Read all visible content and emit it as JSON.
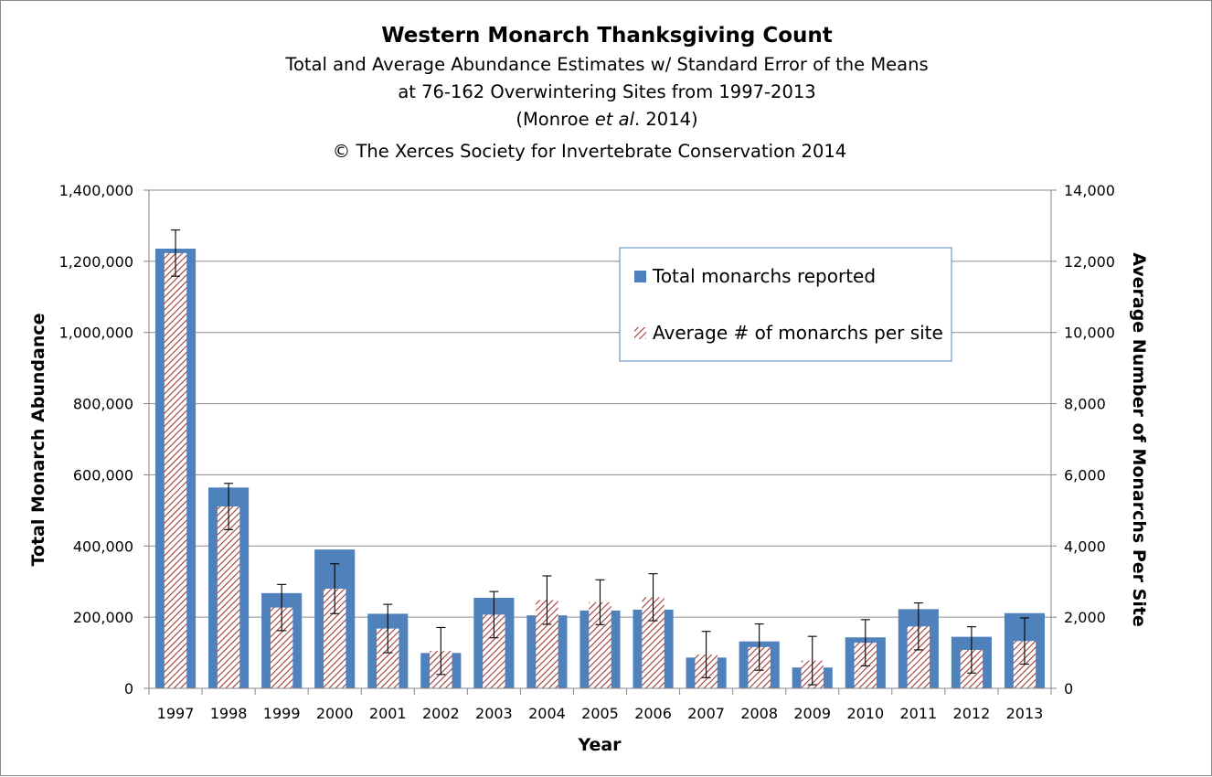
{
  "chart_data": {
    "type": "bar",
    "title": "Western Monarch Thanksgiving Count",
    "subtitle_lines": [
      "Total and Average Abundance Estimates w/ Standard Error of the Means",
      "at 76-162 Overwintering Sites from 1997-2013"
    ],
    "citation": {
      "before": "(Monroe ",
      "italic": "et al",
      "after": ". 2014)"
    },
    "copyright": "© The Xerces Society for Invertebrate Conservation 2014",
    "xlabel": "Year",
    "ylabel": "Total Monarch Abundance",
    "y2label": "Average Number of Monarchs Per Site",
    "ylim": [
      0,
      1400000
    ],
    "y2lim": [
      0,
      14000
    ],
    "yticks": [
      "0",
      "200,000",
      "400,000",
      "600,000",
      "800,000",
      "1,000,000",
      "1,200,000",
      "1,400,000"
    ],
    "y2ticks": [
      "0",
      "2,000",
      "4,000",
      "6,000",
      "8,000",
      "10,000",
      "12,000",
      "14,000"
    ],
    "grid": true,
    "legend_position": "upper-right",
    "categories": [
      "1997",
      "1998",
      "1999",
      "2000",
      "2001",
      "2002",
      "2003",
      "2004",
      "2005",
      "2006",
      "2007",
      "2008",
      "2009",
      "2010",
      "2011",
      "2012",
      "2013"
    ],
    "series": [
      {
        "name": "Total monarchs reported",
        "axis": "left",
        "color": "#4f81bd",
        "values": [
          1235490,
          564349,
          267574,
          390057,
          209570,
          99353,
          254378,
          205085,
          218679,
          221058,
          86437,
          131889,
          58468,
          143204,
          222525,
          144812,
          211275
        ]
      },
      {
        "name": "Average # of monarchs per site",
        "axis": "right",
        "color": "#c0504d",
        "pattern": "hatch",
        "values": [
          12230,
          5110,
          2270,
          2800,
          1680,
          1050,
          2070,
          2480,
          2420,
          2560,
          950,
          1160,
          780,
          1280,
          1740,
          1080,
          1330
        ],
        "error": [
          650,
          650,
          650,
          700,
          680,
          660,
          650,
          680,
          630,
          660,
          650,
          650,
          680,
          650,
          660,
          650,
          650
        ]
      }
    ]
  }
}
